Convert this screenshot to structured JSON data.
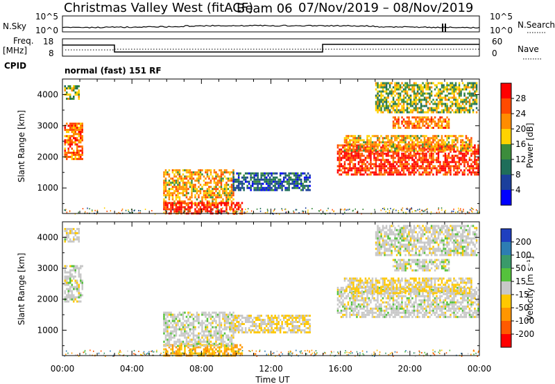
{
  "title": {
    "station": "Christmas Valley West (fitACF)",
    "beam": "Beam 06",
    "dates": "07/Nov/2019 – 08/Nov/2019"
  },
  "strip": {
    "nsky_label": "N.Sky",
    "nsearch_label": "N.Search",
    "freq_label": "Freq.",
    "freq_unit": "[MHz]",
    "nave_label": "Nave",
    "cpid_label": "CPID",
    "cpid_text": "normal (fast) 151 RF",
    "noise_ticks_left": [
      "10^5",
      "10^0"
    ],
    "noise_ticks_right": [
      "10^5",
      "10^0"
    ],
    "freq_ticks": [
      "18",
      "8"
    ],
    "nave_ticks": [
      "60",
      "0"
    ]
  },
  "panels": {
    "ylabel": "Slant Range [km]",
    "xlabel": "Time UT",
    "yticks": [
      "4000",
      "3000",
      "2000",
      "1000"
    ],
    "xticks": [
      "00:00",
      "04:00",
      "08:00",
      "12:00",
      "16:00",
      "20:00",
      "00:00"
    ]
  },
  "colorbars": {
    "power": {
      "label": "Power [dB]",
      "ticks": [
        "28",
        "24",
        "20",
        "16",
        "12",
        "8",
        "4"
      ],
      "colors": [
        "#ff0000",
        "#ff4a00",
        "#ff8c00",
        "#ffd200",
        "#3c8c3c",
        "#1f6e5a",
        "#1b3f9c",
        "#0000ff"
      ]
    },
    "velocity": {
      "label": "Velocity [m s⁻¹]",
      "ticks": [
        "200",
        "100",
        "50",
        "15",
        "-15",
        "-50",
        "-100",
        "-200"
      ],
      "colors": [
        "#1f3fbf",
        "#2d7db3",
        "#3a9a6a",
        "#55c23c",
        "#c8c8c8",
        "#ffc800",
        "#ff9600",
        "#ff5a00",
        "#ff0000"
      ]
    }
  },
  "chart_data": [
    {
      "type": "heatmap",
      "title": "Power",
      "xlabel": "Time UT",
      "ylabel": "Slant Range [km]",
      "xlim": [
        "00:00",
        "24:00"
      ],
      "ylim": [
        180,
        4500
      ],
      "colorbar": {
        "label": "Power [dB]",
        "range": [
          0,
          32
        ]
      },
      "regions": [
        {
          "t_start": 0.1,
          "t_end": 1.1,
          "r_start": 1900,
          "r_end": 3100,
          "dB": 24
        },
        {
          "t_start": 0.1,
          "t_end": 0.9,
          "r_start": 3850,
          "r_end": 4300,
          "dB": 16
        },
        {
          "t_start": 5.8,
          "t_end": 9.8,
          "r_start": 500,
          "r_end": 1600,
          "dB": 20
        },
        {
          "t_start": 5.8,
          "t_end": 10.3,
          "r_start": 180,
          "r_end": 550,
          "dB": 28
        },
        {
          "t_start": 9.8,
          "t_end": 14.2,
          "r_start": 900,
          "r_end": 1500,
          "dB": 8
        },
        {
          "t_start": 15.8,
          "t_end": 23.9,
          "r_start": 1400,
          "r_end": 2400,
          "dB": 28
        },
        {
          "t_start": 16.2,
          "t_end": 23.5,
          "r_start": 2200,
          "r_end": 2700,
          "dB": 20
        },
        {
          "t_start": 19.0,
          "t_end": 22.2,
          "r_start": 2950,
          "r_end": 3300,
          "dB": 24
        },
        {
          "t_start": 18.0,
          "t_end": 23.8,
          "r_start": 3400,
          "r_end": 4400,
          "dB": 16
        }
      ]
    },
    {
      "type": "heatmap",
      "title": "Velocity",
      "xlabel": "Time UT",
      "ylabel": "Slant Range [km]",
      "xlim": [
        "00:00",
        "24:00"
      ],
      "ylim": [
        180,
        4500
      ],
      "colorbar": {
        "label": "Velocity [m s⁻¹]",
        "range": [
          -250,
          250
        ]
      },
      "regions": [
        {
          "t_start": 0.1,
          "t_end": 1.1,
          "r_start": 1900,
          "r_end": 3100,
          "v": 0
        },
        {
          "t_start": 0.1,
          "t_end": 0.9,
          "r_start": 3850,
          "r_end": 4300,
          "v": 0
        },
        {
          "t_start": 5.8,
          "t_end": 10.3,
          "r_start": 180,
          "r_end": 550,
          "v": -50
        },
        {
          "t_start": 5.8,
          "t_end": 9.8,
          "r_start": 500,
          "r_end": 1600,
          "v": 0
        },
        {
          "t_start": 9.8,
          "t_end": 14.2,
          "r_start": 900,
          "r_end": 1500,
          "v": -15
        },
        {
          "t_start": 15.8,
          "t_end": 23.9,
          "r_start": 1400,
          "r_end": 2400,
          "v": 0
        },
        {
          "t_start": 16.2,
          "t_end": 23.5,
          "r_start": 2200,
          "r_end": 2700,
          "v": -15
        },
        {
          "t_start": 19.0,
          "t_end": 22.2,
          "r_start": 2950,
          "r_end": 3300,
          "v": 0
        },
        {
          "t_start": 18.0,
          "t_end": 23.8,
          "r_start": 3400,
          "r_end": 4400,
          "v": 0
        }
      ]
    }
  ]
}
